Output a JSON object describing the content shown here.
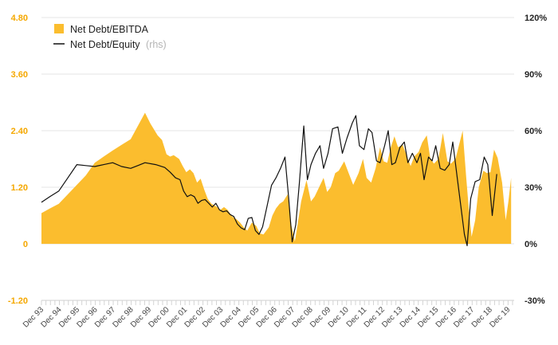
{
  "chart_data": {
    "type": "area",
    "title": "",
    "x_labels": [
      "Dec 93",
      "Dec 94",
      "Dec 95",
      "Dec 96",
      "Dec 97",
      "Dec 98",
      "Dec 99",
      "Dec 00",
      "Dec 01",
      "Dec 02",
      "Dec 03",
      "Dec 04",
      "Dec 05",
      "Dec 06",
      "Dec 07",
      "Dec 08",
      "Dec 09",
      "Dec 10",
      "Dec 11",
      "Dec 12",
      "Dec 13",
      "Dec 14",
      "Dec 15",
      "Dec 16",
      "Dec 17",
      "Dec 18",
      "Dec 19"
    ],
    "x_range": [
      1993.83,
      2020.17
    ],
    "left_axis": {
      "ticks": [
        "4.80",
        "3.60",
        "2.40",
        "1.20",
        "0",
        "-1.20"
      ],
      "ylim": [
        -1.2,
        4.8
      ]
    },
    "right_axis": {
      "ticks": [
        "120%",
        "90%",
        "60%",
        "30%",
        "0%",
        "-30%"
      ],
      "ylim": [
        -30,
        120
      ]
    },
    "legend": {
      "position": "top-left",
      "entries": [
        {
          "label": "Net Debt/EBITDA",
          "note": ""
        },
        {
          "label": "Net Debt/Equity",
          "note": "(rhs)"
        }
      ]
    },
    "colors": {
      "area": "#fbbd2e",
      "line": "#111111",
      "left_ticks": "#f5a800",
      "gridline": "#e6e6e6"
    },
    "series": [
      {
        "name": "Net Debt/EBITDA",
        "axis": "left",
        "kind": "area",
        "points": [
          [
            1993.83,
            0.65
          ],
          [
            1994.3,
            0.75
          ],
          [
            1994.8,
            0.85
          ],
          [
            1995.3,
            1.05
          ],
          [
            1995.8,
            1.25
          ],
          [
            1996.3,
            1.45
          ],
          [
            1996.8,
            1.72
          ],
          [
            1997.3,
            1.85
          ],
          [
            1997.8,
            1.98
          ],
          [
            1998.3,
            2.1
          ],
          [
            1998.8,
            2.22
          ],
          [
            1999.2,
            2.5
          ],
          [
            1999.6,
            2.78
          ],
          [
            1999.9,
            2.55
          ],
          [
            2000.3,
            2.3
          ],
          [
            2000.55,
            2.2
          ],
          [
            2000.8,
            1.9
          ],
          [
            2001.0,
            1.85
          ],
          [
            2001.2,
            1.88
          ],
          [
            2001.5,
            1.8
          ],
          [
            2001.7,
            1.65
          ],
          [
            2001.9,
            1.52
          ],
          [
            2002.1,
            1.58
          ],
          [
            2002.3,
            1.5
          ],
          [
            2002.5,
            1.3
          ],
          [
            2002.7,
            1.38
          ],
          [
            2002.9,
            1.15
          ],
          [
            2003.1,
            0.95
          ],
          [
            2003.3,
            0.85
          ],
          [
            2003.55,
            0.8
          ],
          [
            2003.8,
            0.72
          ],
          [
            2004.0,
            0.78
          ],
          [
            2004.2,
            0.72
          ],
          [
            2004.45,
            0.58
          ],
          [
            2004.7,
            0.52
          ],
          [
            2004.9,
            0.45
          ],
          [
            2005.1,
            0.35
          ],
          [
            2005.3,
            0.28
          ],
          [
            2005.55,
            0.45
          ],
          [
            2005.8,
            0.38
          ],
          [
            2006.0,
            0.22
          ],
          [
            2006.2,
            0.2
          ],
          [
            2006.5,
            0.35
          ],
          [
            2006.7,
            0.6
          ],
          [
            2006.9,
            0.75
          ],
          [
            2007.1,
            0.85
          ],
          [
            2007.3,
            0.9
          ],
          [
            2007.55,
            1.05
          ],
          [
            2007.75,
            0.4
          ],
          [
            2007.95,
            0.05
          ],
          [
            2008.1,
            0.4
          ],
          [
            2008.3,
            0.9
          ],
          [
            2008.6,
            1.35
          ],
          [
            2008.85,
            0.9
          ],
          [
            2009.05,
            1.0
          ],
          [
            2009.3,
            1.2
          ],
          [
            2009.55,
            1.4
          ],
          [
            2009.75,
            1.1
          ],
          [
            2009.95,
            1.2
          ],
          [
            2010.2,
            1.5
          ],
          [
            2010.4,
            1.55
          ],
          [
            2010.7,
            1.75
          ],
          [
            2010.95,
            1.5
          ],
          [
            2011.2,
            1.25
          ],
          [
            2011.5,
            1.5
          ],
          [
            2011.75,
            1.8
          ],
          [
            2011.95,
            1.4
          ],
          [
            2012.2,
            1.3
          ],
          [
            2012.45,
            1.6
          ],
          [
            2012.7,
            2.05
          ],
          [
            2012.9,
            1.75
          ],
          [
            2013.1,
            1.72
          ],
          [
            2013.3,
            2.05
          ],
          [
            2013.5,
            2.28
          ],
          [
            2013.7,
            2.05
          ],
          [
            2013.95,
            2.1
          ],
          [
            2014.15,
            1.9
          ],
          [
            2014.4,
            1.65
          ],
          [
            2014.6,
            1.85
          ],
          [
            2014.85,
            1.95
          ],
          [
            2015.05,
            2.15
          ],
          [
            2015.3,
            2.3
          ],
          [
            2015.5,
            1.8
          ],
          [
            2015.7,
            1.7
          ],
          [
            2015.95,
            1.8
          ],
          [
            2016.2,
            2.35
          ],
          [
            2016.45,
            1.75
          ],
          [
            2016.65,
            1.7
          ],
          [
            2016.9,
            1.8
          ],
          [
            2017.1,
            2.1
          ],
          [
            2017.3,
            2.4
          ],
          [
            2017.5,
            1.4
          ],
          [
            2017.65,
            0.7
          ],
          [
            2017.8,
            0.15
          ],
          [
            2018.0,
            0.5
          ],
          [
            2018.2,
            1.2
          ],
          [
            2018.45,
            1.55
          ],
          [
            2018.65,
            1.5
          ],
          [
            2018.85,
            1.52
          ],
          [
            2019.05,
            2.0
          ],
          [
            2019.25,
            1.82
          ],
          [
            2019.5,
            1.3
          ],
          [
            2019.7,
            0.5
          ],
          [
            2019.85,
            0.9
          ],
          [
            2020.0,
            1.4
          ]
        ]
      },
      {
        "name": "Net Debt/Equity",
        "axis": "right",
        "kind": "line",
        "points": [
          [
            1993.83,
            22
          ],
          [
            1994.3,
            25
          ],
          [
            1994.8,
            28
          ],
          [
            1995.3,
            35
          ],
          [
            1995.8,
            42
          ],
          [
            1996.3,
            41.5
          ],
          [
            1996.8,
            41
          ],
          [
            1997.3,
            42
          ],
          [
            1997.8,
            43
          ],
          [
            1998.3,
            41
          ],
          [
            1998.8,
            40
          ],
          [
            1999.2,
            41.5
          ],
          [
            1999.6,
            43
          ],
          [
            2000.2,
            42
          ],
          [
            2000.7,
            40.5
          ],
          [
            2001.0,
            38
          ],
          [
            2001.3,
            35
          ],
          [
            2001.55,
            34
          ],
          [
            2001.75,
            28
          ],
          [
            2001.95,
            25
          ],
          [
            2002.15,
            26
          ],
          [
            2002.35,
            25
          ],
          [
            2002.55,
            21.5
          ],
          [
            2002.75,
            23
          ],
          [
            2002.95,
            23.5
          ],
          [
            2003.15,
            21.5
          ],
          [
            2003.35,
            19.5
          ],
          [
            2003.55,
            21.5
          ],
          [
            2003.75,
            18
          ],
          [
            2003.95,
            17
          ],
          [
            2004.15,
            17.5
          ],
          [
            2004.35,
            15.5
          ],
          [
            2004.55,
            14.5
          ],
          [
            2004.75,
            10.5
          ],
          [
            2004.95,
            8.5
          ],
          [
            2005.15,
            7.5
          ],
          [
            2005.35,
            13.5
          ],
          [
            2005.55,
            14
          ],
          [
            2005.75,
            7
          ],
          [
            2005.95,
            5
          ],
          [
            2006.15,
            9
          ],
          [
            2006.4,
            20
          ],
          [
            2006.65,
            31
          ],
          [
            2006.9,
            35
          ],
          [
            2007.15,
            40
          ],
          [
            2007.4,
            46
          ],
          [
            2007.6,
            25
          ],
          [
            2007.8,
            1
          ],
          [
            2008.0,
            10
          ],
          [
            2008.2,
            32
          ],
          [
            2008.45,
            62.5
          ],
          [
            2008.65,
            34
          ],
          [
            2008.85,
            42
          ],
          [
            2009.1,
            48
          ],
          [
            2009.35,
            52
          ],
          [
            2009.55,
            40
          ],
          [
            2009.8,
            48
          ],
          [
            2010.05,
            61
          ],
          [
            2010.35,
            62
          ],
          [
            2010.6,
            48
          ],
          [
            2010.85,
            56
          ],
          [
            2011.15,
            64
          ],
          [
            2011.35,
            68
          ],
          [
            2011.55,
            52
          ],
          [
            2011.8,
            50
          ],
          [
            2012.05,
            61
          ],
          [
            2012.25,
            59
          ],
          [
            2012.5,
            44
          ],
          [
            2012.7,
            43
          ],
          [
            2012.95,
            52
          ],
          [
            2013.15,
            60
          ],
          [
            2013.35,
            42
          ],
          [
            2013.55,
            43
          ],
          [
            2013.8,
            51
          ],
          [
            2014.05,
            54
          ],
          [
            2014.25,
            43
          ],
          [
            2014.5,
            48
          ],
          [
            2014.75,
            43
          ],
          [
            2014.95,
            48
          ],
          [
            2015.15,
            34
          ],
          [
            2015.4,
            46
          ],
          [
            2015.6,
            44
          ],
          [
            2015.8,
            52
          ],
          [
            2016.05,
            40
          ],
          [
            2016.3,
            39
          ],
          [
            2016.55,
            42
          ],
          [
            2016.75,
            54
          ],
          [
            2017.0,
            35
          ],
          [
            2017.2,
            20
          ],
          [
            2017.4,
            5
          ],
          [
            2017.55,
            -1
          ],
          [
            2017.75,
            24
          ],
          [
            2018.0,
            33
          ],
          [
            2018.25,
            34
          ],
          [
            2018.5,
            46
          ],
          [
            2018.7,
            42
          ],
          [
            2018.95,
            15
          ],
          [
            2019.2,
            37
          ]
        ]
      }
    ]
  }
}
